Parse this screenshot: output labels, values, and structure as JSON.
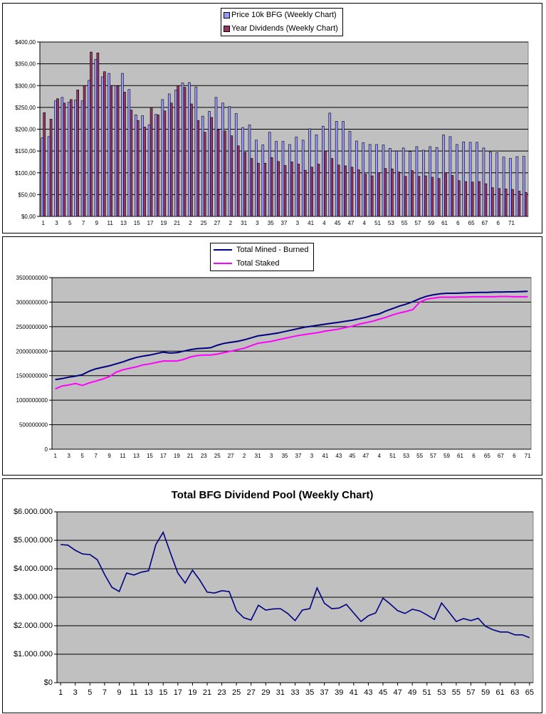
{
  "chart_data": [
    {
      "type": "bar",
      "title": "",
      "colors": {
        "price": "#9999ff",
        "dividends": "#993366",
        "plot_bg": "#c0c0c0",
        "grid": "#000000"
      },
      "ylim": [
        0,
        400
      ],
      "y_ticks": [
        "$0,00",
        "$50,00",
        "$100,00",
        "$150,00",
        "$200,00",
        "$250,00",
        "$300,00",
        "$350,00",
        "$400,00"
      ],
      "x_tick_labels": [
        "1",
        "3",
        "5",
        "7",
        "9",
        "11",
        "13",
        "15",
        "17",
        "19",
        "21",
        "2",
        "25",
        "27",
        "2",
        "31",
        "3",
        "35",
        "37",
        "3",
        "41",
        "4",
        "45",
        "47",
        "4",
        "51",
        "53",
        "55",
        "57",
        "59",
        "61",
        "6",
        "65",
        "67",
        "6",
        "71"
      ],
      "legend_position": "top-center",
      "series": [
        {
          "name": "Price 10k BFG (Weekly Chart)",
          "values": [
            180,
            183,
            265,
            273,
            262,
            267,
            265,
            312,
            360,
            320,
            328,
            300,
            328,
            291,
            233,
            231,
            210,
            234,
            268,
            281,
            290,
            306,
            307,
            297,
            230,
            241,
            273,
            260,
            252,
            236,
            204,
            210,
            175,
            164,
            193,
            172,
            172,
            165,
            182,
            175,
            201,
            187,
            207,
            237,
            218,
            218,
            195,
            173,
            169,
            165,
            165,
            164,
            156,
            150,
            157,
            149,
            160,
            152,
            160,
            158,
            187,
            183,
            165,
            171,
            170,
            170,
            157,
            148,
            146,
            136,
            133,
            137,
            138
          ]
        },
        {
          "name": "Year Dividends (Weekly Chart)",
          "values": [
            238,
            223,
            270,
            260,
            268,
            290,
            300,
            377,
            375,
            332,
            300,
            299,
            285,
            244,
            220,
            205,
            250,
            233,
            242,
            260,
            300,
            296,
            258,
            220,
            193,
            227,
            199,
            196,
            185,
            162,
            147,
            133,
            122,
            122,
            135,
            126,
            117,
            125,
            120,
            106,
            113,
            120,
            150,
            133,
            118,
            116,
            113,
            107,
            97,
            93,
            100,
            110,
            109,
            102,
            92,
            105,
            92,
            93,
            90,
            87,
            100,
            94,
            82,
            80,
            79,
            80,
            75,
            66,
            64,
            63,
            62,
            58,
            55
          ]
        }
      ]
    },
    {
      "type": "line",
      "title": "",
      "colors": {
        "mined": "#000080",
        "staked": "#ff00ff",
        "plot_bg": "#c0c0c0"
      },
      "ylim": [
        0,
        3500000000
      ],
      "y_ticks": [
        "0",
        "500000000",
        "1000000000",
        "1500000000",
        "2000000000",
        "2500000000",
        "3000000000",
        "3500000000"
      ],
      "x_tick_labels": [
        "1",
        "3",
        "5",
        "7",
        "9",
        "11",
        "13",
        "15",
        "17",
        "19",
        "21",
        "23",
        "25",
        "27",
        "2",
        "31",
        "3",
        "35",
        "37",
        "3",
        "41",
        "43",
        "45",
        "47",
        "4",
        "51",
        "53",
        "55",
        "57",
        "59",
        "61",
        "6",
        "65",
        "67",
        "6",
        "71"
      ],
      "legend_position": "top-center",
      "series": [
        {
          "name": "Total Mined - Burned",
          "values": [
            1420000000,
            1440000000,
            1470000000,
            1490000000,
            1520000000,
            1590000000,
            1640000000,
            1670000000,
            1700000000,
            1740000000,
            1780000000,
            1830000000,
            1870000000,
            1900000000,
            1920000000,
            1950000000,
            1980000000,
            1960000000,
            1970000000,
            2000000000,
            2030000000,
            2050000000,
            2060000000,
            2070000000,
            2120000000,
            2160000000,
            2180000000,
            2200000000,
            2230000000,
            2270000000,
            2310000000,
            2330000000,
            2350000000,
            2370000000,
            2400000000,
            2430000000,
            2460000000,
            2490000000,
            2510000000,
            2530000000,
            2550000000,
            2570000000,
            2590000000,
            2610000000,
            2630000000,
            2660000000,
            2690000000,
            2730000000,
            2760000000,
            2820000000,
            2870000000,
            2920000000,
            2960000000,
            3010000000,
            3070000000,
            3120000000,
            3150000000,
            3170000000,
            3180000000,
            3180000000,
            3185000000,
            3190000000,
            3195000000,
            3200000000,
            3200000000,
            3205000000,
            3205000000,
            3210000000,
            3210000000,
            3215000000,
            3220000000
          ]
        },
        {
          "name": "Total Staked",
          "values": [
            1230000000,
            1290000000,
            1310000000,
            1340000000,
            1300000000,
            1350000000,
            1390000000,
            1430000000,
            1480000000,
            1570000000,
            1620000000,
            1650000000,
            1680000000,
            1720000000,
            1740000000,
            1770000000,
            1800000000,
            1800000000,
            1800000000,
            1830000000,
            1880000000,
            1910000000,
            1920000000,
            1920000000,
            1940000000,
            1970000000,
            2000000000,
            2030000000,
            2060000000,
            2110000000,
            2160000000,
            2180000000,
            2200000000,
            2230000000,
            2260000000,
            2290000000,
            2320000000,
            2340000000,
            2360000000,
            2380000000,
            2410000000,
            2430000000,
            2450000000,
            2480000000,
            2510000000,
            2550000000,
            2580000000,
            2610000000,
            2650000000,
            2690000000,
            2740000000,
            2780000000,
            2810000000,
            2850000000,
            3000000000,
            3060000000,
            3080000000,
            3100000000,
            3100000000,
            3100000000,
            3105000000,
            3105000000,
            3110000000,
            3110000000,
            3110000000,
            3110000000,
            3115000000,
            3115000000,
            3110000000,
            3110000000,
            3110000000
          ]
        }
      ]
    },
    {
      "type": "line",
      "title": "Total BFG Dividend Pool (Weekly Chart)",
      "colors": {
        "line": "#000080",
        "plot_bg": "#c0c0c0"
      },
      "ylim": [
        0,
        6000000
      ],
      "y_ticks": [
        "$0",
        "$1.000.000",
        "$2.000.000",
        "$3.000.000",
        "$4.000.000",
        "$5.000.000",
        "$6.000.000"
      ],
      "x_tick_labels": [
        "1",
        "3",
        "5",
        "7",
        "9",
        "11",
        "13",
        "15",
        "17",
        "19",
        "21",
        "23",
        "25",
        "27",
        "29",
        "31",
        "33",
        "35",
        "37",
        "39",
        "41",
        "43",
        "45",
        "47",
        "49",
        "51",
        "53",
        "55",
        "57",
        "59",
        "61",
        "63",
        "65"
      ],
      "legend_position": "none",
      "series": [
        {
          "name": "",
          "values": [
            4850000,
            4830000,
            4650000,
            4520000,
            4500000,
            4320000,
            3800000,
            3350000,
            3200000,
            3850000,
            3780000,
            3880000,
            3930000,
            4850000,
            5280000,
            4550000,
            3850000,
            3500000,
            3950000,
            3600000,
            3180000,
            3150000,
            3230000,
            3200000,
            2530000,
            2280000,
            2200000,
            2720000,
            2550000,
            2590000,
            2600000,
            2430000,
            2180000,
            2550000,
            2600000,
            3330000,
            2790000,
            2600000,
            2620000,
            2750000,
            2450000,
            2150000,
            2350000,
            2450000,
            2970000,
            2760000,
            2530000,
            2430000,
            2580000,
            2520000,
            2380000,
            2220000,
            2800000,
            2480000,
            2150000,
            2250000,
            2180000,
            2260000,
            1980000,
            1860000,
            1780000,
            1780000,
            1680000,
            1680000,
            1580000
          ]
        }
      ]
    }
  ]
}
